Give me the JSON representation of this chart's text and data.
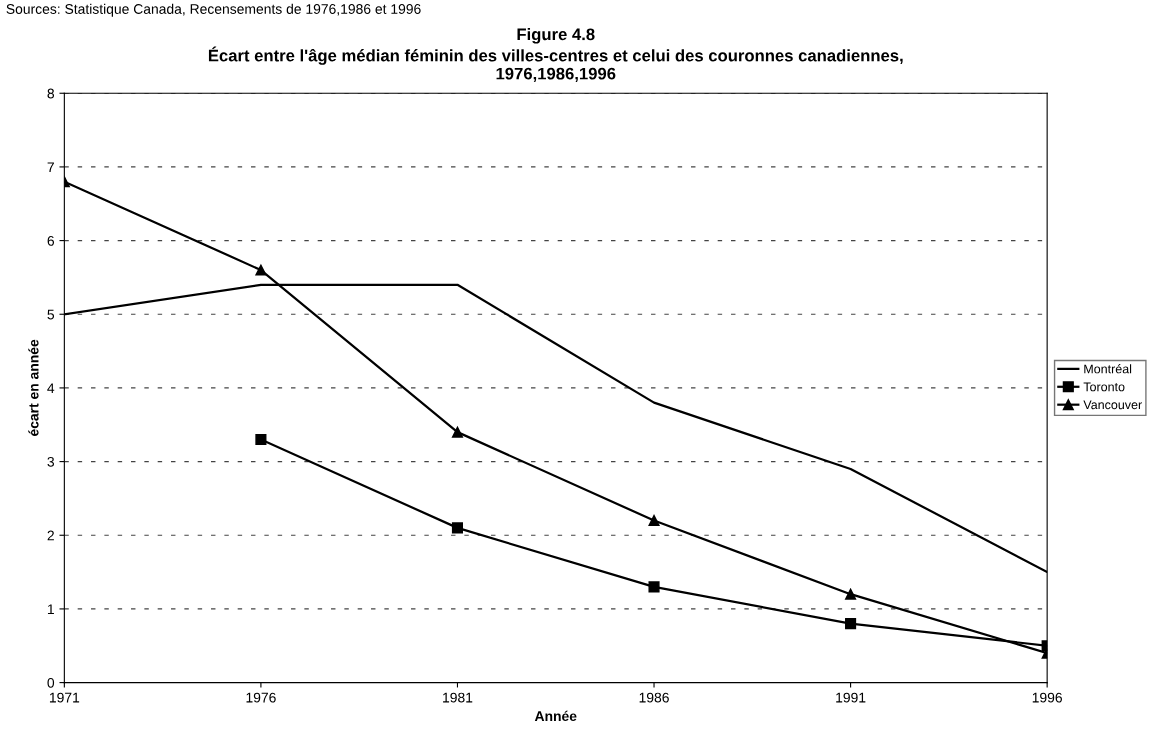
{
  "chart_data": {
    "type": "line",
    "title": "Figure 4.8\nÉcart entre l'âge médian féminin des villes-centres et celui des couronnes canadiennes,\n1976,1986,1996",
    "xlabel": "Année",
    "ylabel": "écart en année",
    "annotations": [
      "Sources: Statistique Canada, Recensements de 1976,1986 et 1996"
    ],
    "categories": [
      "1971",
      "1976",
      "1981",
      "1986",
      "1991",
      "1996"
    ],
    "series": [
      {
        "name": "Montréal",
        "color": "#000000",
        "marker": "none",
        "values": [
          5.0,
          5.4,
          5.4,
          3.8,
          2.9,
          1.5
        ]
      },
      {
        "name": "Toronto",
        "color": "#000000",
        "marker": "square",
        "values": [
          null,
          3.3,
          2.1,
          1.3,
          0.8,
          0.5
        ]
      },
      {
        "name": "Vancouver",
        "color": "#000000",
        "marker": "triangle",
        "values": [
          6.8,
          5.6,
          3.4,
          2.2,
          1.2,
          0.4
        ]
      }
    ],
    "ylim": [
      0,
      8
    ],
    "yticks": [
      0,
      1,
      2,
      3,
      4,
      5,
      6,
      7,
      8
    ],
    "grid": "y",
    "legend": "right",
    "line_style": "solid"
  }
}
